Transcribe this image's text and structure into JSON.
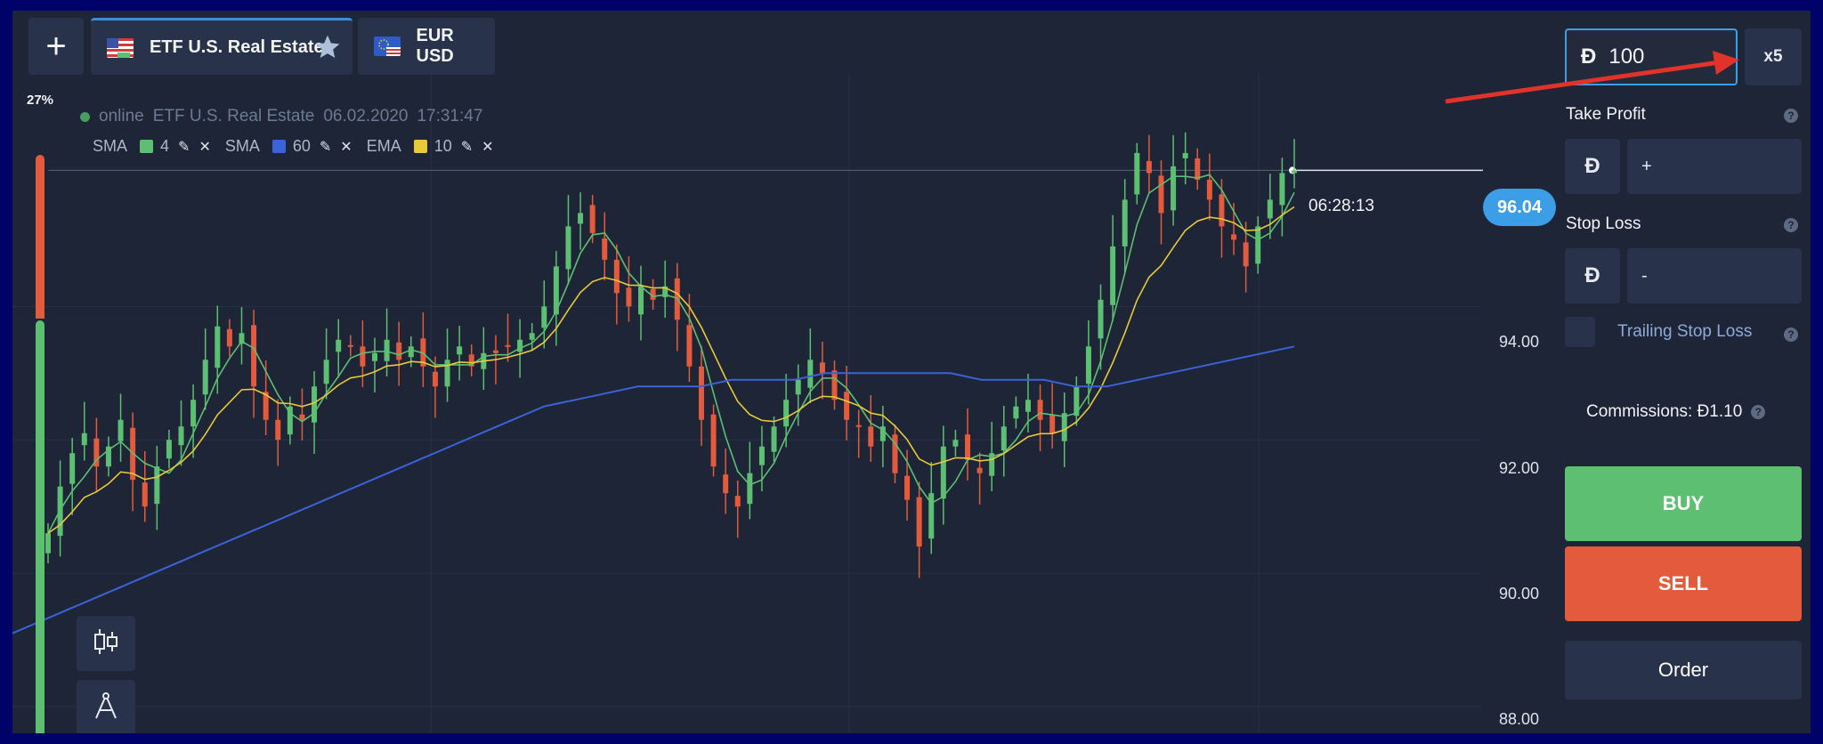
{
  "tabs": {
    "add_label": "+",
    "active": {
      "label": "ETF U.S. Real Estate",
      "flag": "us-flag-icon",
      "favorite_icon": "star-icon"
    },
    "second": {
      "label": "EUR USD",
      "flag": "eu-flag-icon"
    }
  },
  "volume_percent": "27%",
  "chart_info": {
    "status": "online",
    "instrument": "ETF U.S. Real Estate",
    "date": "06.02.2020",
    "time": "17:31:47"
  },
  "indicators": [
    {
      "type": "SMA",
      "period": "4",
      "color": "#5dbf72"
    },
    {
      "type": "SMA",
      "period": "60",
      "color": "#3a63d8"
    },
    {
      "type": "EMA",
      "period": "10",
      "color": "#e8c93a"
    }
  ],
  "y_axis": {
    "labels": [
      "94.00",
      "92.00",
      "90.00",
      "88.00"
    ]
  },
  "current_price": "96.04",
  "countdown": "06:28:13",
  "chart_data": {
    "type": "candlestick",
    "ylim": [
      87.6,
      97.5
    ],
    "y_ticks": [
      94,
      92,
      90,
      88
    ],
    "current_price": 96.04,
    "colors": {
      "up": "#5dbf72",
      "down": "#e45a3c",
      "sma4": "#5dbf72",
      "sma60": "#3a63d8",
      "ema10": "#e8c93a"
    },
    "close": [
      90.6,
      91.3,
      91.8,
      92.1,
      91.6,
      91.9,
      92.3,
      91.4,
      91.0,
      91.6,
      92.0,
      92.2,
      92.6,
      93.2,
      93.7,
      93.4,
      93.6,
      92.8,
      92.3,
      92.0,
      92.5,
      92.3,
      92.8,
      93.2,
      93.5,
      93.4,
      93.1,
      93.3,
      93.5,
      93.2,
      93.4,
      93.1,
      92.8,
      93.2,
      93.4,
      93.1,
      93.3,
      93.3,
      93.4,
      93.5,
      93.6,
      94.0,
      94.6,
      95.2,
      95.4,
      95.1,
      94.7,
      94.2,
      94.0,
      94.3,
      94.1,
      94.3,
      93.8,
      93.1,
      92.3,
      91.6,
      91.2,
      91.0,
      91.5,
      91.9,
      92.2,
      92.6,
      92.9,
      93.2,
      93.0,
      92.6,
      92.3,
      92.2,
      91.9,
      92.2,
      91.5,
      91.1,
      90.4,
      91.2,
      91.9,
      92.0,
      91.7,
      91.5,
      91.8,
      92.2,
      92.5,
      92.6,
      92.3,
      92.1,
      92.4,
      92.8,
      93.4,
      94.1,
      94.9,
      95.6,
      96.3,
      96.0,
      95.4,
      96.1,
      96.3,
      95.9,
      95.6,
      95.2,
      95.0,
      94.6,
      95.2,
      95.6,
      96.0,
      96.04
    ],
    "sma60": [
      89.1,
      89.3,
      89.5,
      89.7,
      89.9,
      90.1,
      90.3,
      90.5,
      90.7,
      90.9,
      91.1,
      91.3,
      91.5,
      91.7,
      91.9,
      92.1,
      92.3,
      92.5,
      92.6,
      92.7,
      92.8,
      92.8,
      92.8,
      92.9,
      92.9,
      92.9,
      93.0,
      93.0,
      93.0,
      93.0,
      93.0,
      92.9,
      92.9,
      92.9,
      92.8,
      92.8,
      92.9,
      93.0,
      93.1,
      93.2,
      93.3,
      93.4
    ]
  },
  "trade_panel": {
    "currency_symbol": "Đ",
    "amount": "100",
    "multiplier": "x5",
    "take_profit_label": "Take Profit",
    "take_profit_value": "+",
    "stop_loss_label": "Stop Loss",
    "stop_loss_value": "-",
    "trailing_label": "Trailing Stop Loss",
    "commissions": "Commissions: Đ1.10",
    "buy_label": "BUY",
    "sell_label": "SELL",
    "order_label": "Order",
    "help_glyph": "?"
  }
}
